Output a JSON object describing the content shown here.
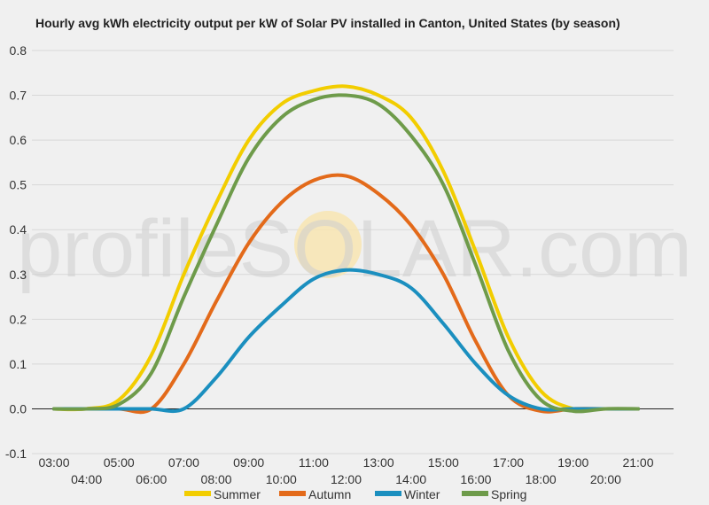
{
  "chart_data": {
    "type": "line",
    "title": "Hourly avg kWh electricity output per kW of Solar PV installed in Canton, United States (by season)",
    "xlabel": "",
    "ylabel": "",
    "ylim": [
      -0.1,
      0.8
    ],
    "yticks": [
      "-0.1",
      "0.0",
      "0.1",
      "0.2",
      "0.3",
      "0.4",
      "0.5",
      "0.6",
      "0.7",
      "0.8"
    ],
    "x": [
      "03:00",
      "04:00",
      "05:00",
      "06:00",
      "07:00",
      "08:00",
      "09:00",
      "10:00",
      "11:00",
      "12:00",
      "13:00",
      "14:00",
      "15:00",
      "16:00",
      "17:00",
      "18:00",
      "19:00",
      "20:00",
      "21:00"
    ],
    "grid": true,
    "legend_position": "bottom",
    "watermark": "profileSOLAR.com",
    "series": [
      {
        "name": "Summer",
        "color": "#f2cd00",
        "values": [
          0.0,
          0.0,
          0.02,
          0.12,
          0.3,
          0.46,
          0.6,
          0.68,
          0.71,
          0.72,
          0.7,
          0.65,
          0.53,
          0.35,
          0.16,
          0.04,
          0.0,
          0.0,
          0.0
        ]
      },
      {
        "name": "Autumn",
        "color": "#e36a1a",
        "values": [
          0.0,
          0.0,
          0.0,
          0.0,
          0.1,
          0.24,
          0.37,
          0.46,
          0.51,
          0.52,
          0.48,
          0.41,
          0.3,
          0.15,
          0.03,
          -0.005,
          0.0,
          0.0,
          0.0
        ]
      },
      {
        "name": "Winter",
        "color": "#1b8fbf",
        "values": [
          0.0,
          0.0,
          0.0,
          0.0,
          0.0,
          0.07,
          0.16,
          0.23,
          0.29,
          0.31,
          0.3,
          0.27,
          0.19,
          0.1,
          0.03,
          0.0,
          0.0,
          0.0,
          0.0
        ]
      },
      {
        "name": "Spring",
        "color": "#6e9b4a",
        "values": [
          0.0,
          0.0,
          0.01,
          0.08,
          0.25,
          0.41,
          0.56,
          0.65,
          0.69,
          0.7,
          0.68,
          0.61,
          0.5,
          0.32,
          0.13,
          0.02,
          -0.005,
          0.0,
          0.0
        ]
      }
    ]
  }
}
